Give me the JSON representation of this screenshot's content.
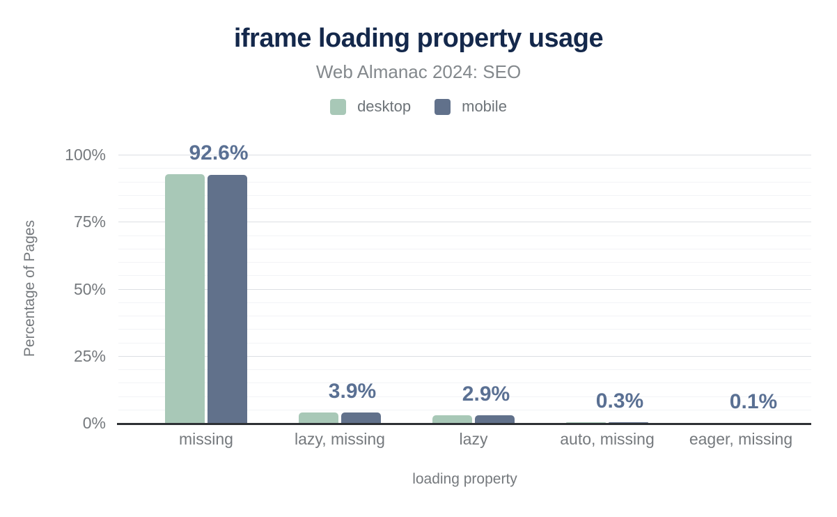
{
  "header": {
    "title": "iframe loading property usage",
    "subtitle": "Web Almanac 2024: SEO"
  },
  "colors": {
    "title": "#14284b",
    "subtitle": "#83888c",
    "axis_text": "#75797d",
    "value_label": "#5a7093",
    "axis_line": "#2d3034",
    "grid_major": "#dcdfe3",
    "grid_minor": "#f2f3f6",
    "desktop": "#a8c8b7",
    "mobile": "#61718b"
  },
  "chart_data": {
    "type": "bar",
    "title": "iframe loading property usage",
    "subtitle": "Web Almanac 2024: SEO",
    "categories": [
      "missing",
      "lazy, missing",
      "lazy",
      "auto, missing",
      "eager, missing"
    ],
    "series": [
      {
        "name": "desktop",
        "color": "#a8c8b7",
        "values": [
          92.8,
          3.9,
          2.9,
          0.3,
          0.1
        ]
      },
      {
        "name": "mobile",
        "color": "#61718b",
        "values": [
          92.6,
          3.9,
          2.9,
          0.3,
          0.1
        ]
      }
    ],
    "value_labels": [
      "92.6%",
      "3.9%",
      "2.9%",
      "0.3%",
      "0.1%"
    ],
    "xlabel": "loading property",
    "ylabel": "Percentage of Pages",
    "ylim": [
      0,
      100
    ],
    "yticks": [
      0,
      25,
      50,
      75,
      100
    ],
    "ytick_labels": [
      "0%",
      "25%",
      "50%",
      "75%",
      "100%"
    ],
    "grid": {
      "major_step": 25,
      "minor_step": 5,
      "grid_on": true
    },
    "legend_position": "top"
  }
}
